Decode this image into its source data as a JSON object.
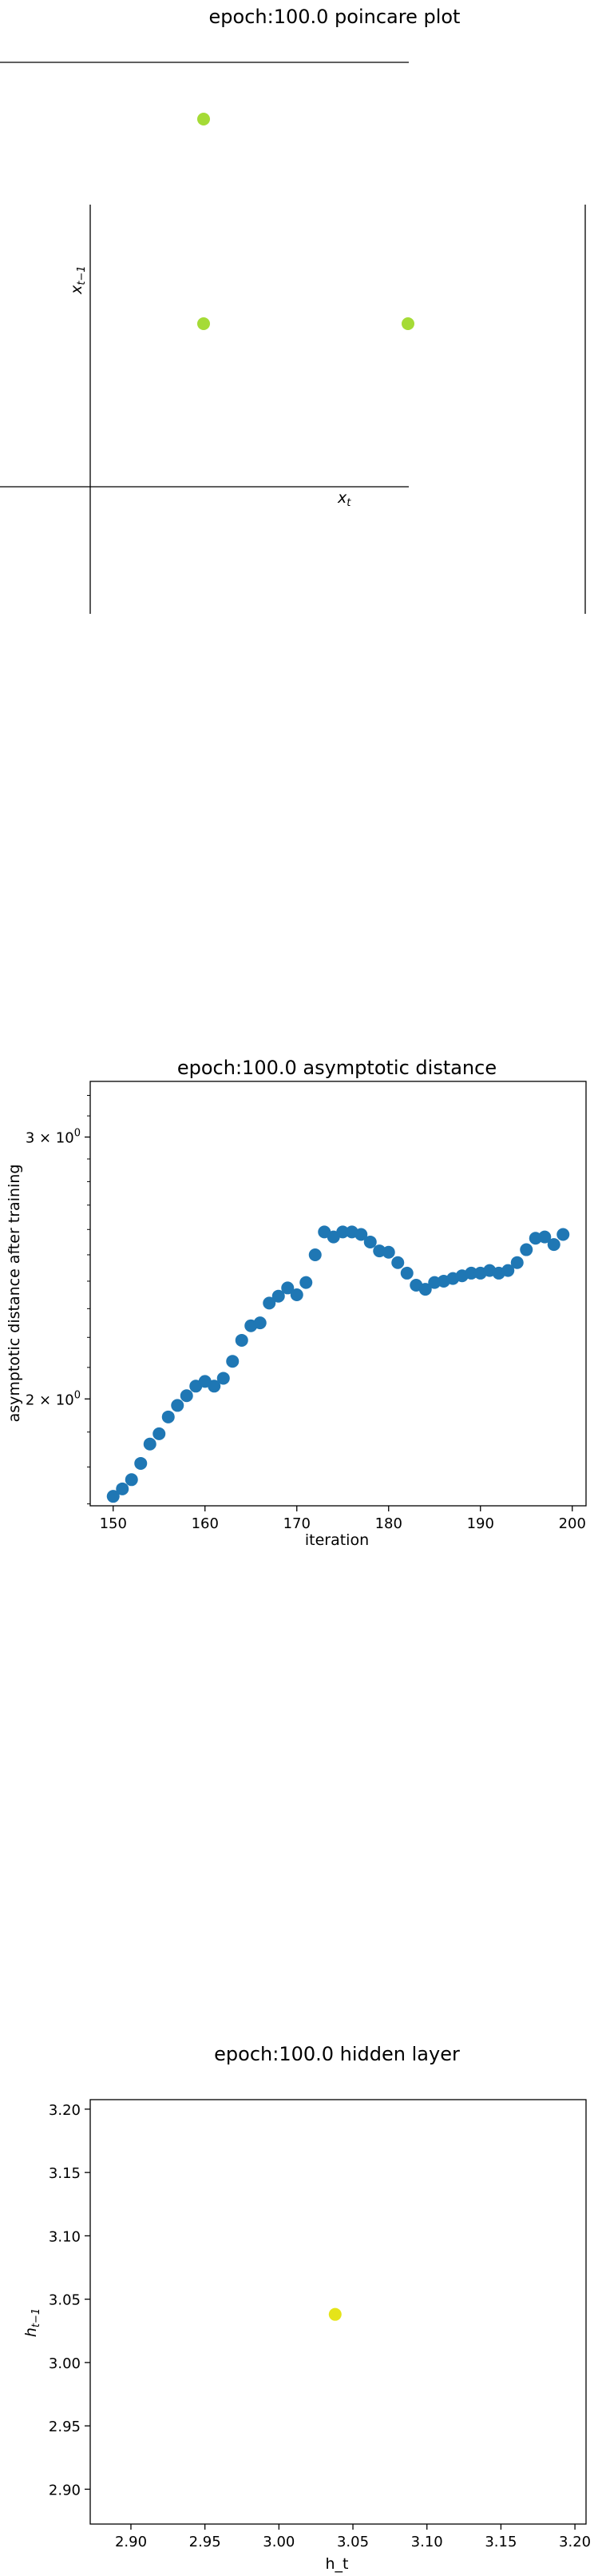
{
  "chart_data": [
    {
      "type": "scatter",
      "title": "epoch:100.0 poincare plot",
      "xlabel": "x",
      "xlabel_sub": "t",
      "ylabel": "x",
      "ylabel_sub": "t−1",
      "points": [
        {
          "x": 0.0,
          "y": 1.0
        },
        {
          "x": 0.0,
          "y": 0.0
        },
        {
          "x": 1.0,
          "y": 0.0
        }
      ],
      "point_color": "#a5db36",
      "grid": false
    },
    {
      "type": "scatter",
      "title": "epoch:100.0 asymptotic distance",
      "xlabel": "iteration",
      "ylabel": "asymptotic distance after training",
      "yscale": "log",
      "xlim": [
        147.5,
        201.5
      ],
      "ylim": [
        1.695,
        3.27
      ],
      "xticks": [
        150,
        160,
        170,
        180,
        190,
        200
      ],
      "yticks": [
        {
          "value": 3,
          "label": "3 × 10",
          "exp": "0"
        },
        {
          "value": 2,
          "label": "2 × 10",
          "exp": "0"
        }
      ],
      "x": [
        150,
        151,
        152,
        153,
        154,
        155,
        156,
        157,
        158,
        159,
        160,
        161,
        162,
        163,
        164,
        165,
        166,
        167,
        168,
        169,
        170,
        171,
        172,
        173,
        174,
        175,
        176,
        177,
        178,
        179,
        180,
        181,
        182,
        183,
        184,
        185,
        186,
        187,
        188,
        189,
        190,
        191,
        192,
        193,
        194,
        195,
        196,
        197,
        198,
        199
      ],
      "y": [
        1.72,
        1.74,
        1.765,
        1.81,
        1.865,
        1.895,
        1.945,
        1.98,
        2.01,
        2.04,
        2.055,
        2.04,
        2.065,
        2.12,
        2.19,
        2.24,
        2.25,
        2.32,
        2.345,
        2.375,
        2.35,
        2.395,
        2.5,
        2.59,
        2.57,
        2.59,
        2.59,
        2.58,
        2.55,
        2.515,
        2.51,
        2.47,
        2.43,
        2.385,
        2.37,
        2.395,
        2.4,
        2.41,
        2.42,
        2.43,
        2.43,
        2.44,
        2.43,
        2.44,
        2.47,
        2.52,
        2.565,
        2.57,
        2.54,
        2.58
      ],
      "point_color": "#1f77b4",
      "grid": false
    },
    {
      "type": "scatter",
      "title": "epoch:100.0 hidden layer",
      "xlabel": "h_t",
      "ylabel": "h",
      "ylabel_sub": "t−1",
      "xlim": [
        2.8725,
        3.2075
      ],
      "ylim": [
        2.8725,
        3.2075
      ],
      "xticks": [
        "2.90",
        "2.95",
        "3.00",
        "3.05",
        "3.10",
        "3.15",
        "3.20"
      ],
      "yticks": [
        "3.20",
        "3.15",
        "3.10",
        "3.05",
        "3.00",
        "2.95",
        "2.90"
      ],
      "points": [
        {
          "x": 3.038,
          "y": 3.038
        }
      ],
      "point_color": "#e5e419",
      "grid": false
    }
  ]
}
